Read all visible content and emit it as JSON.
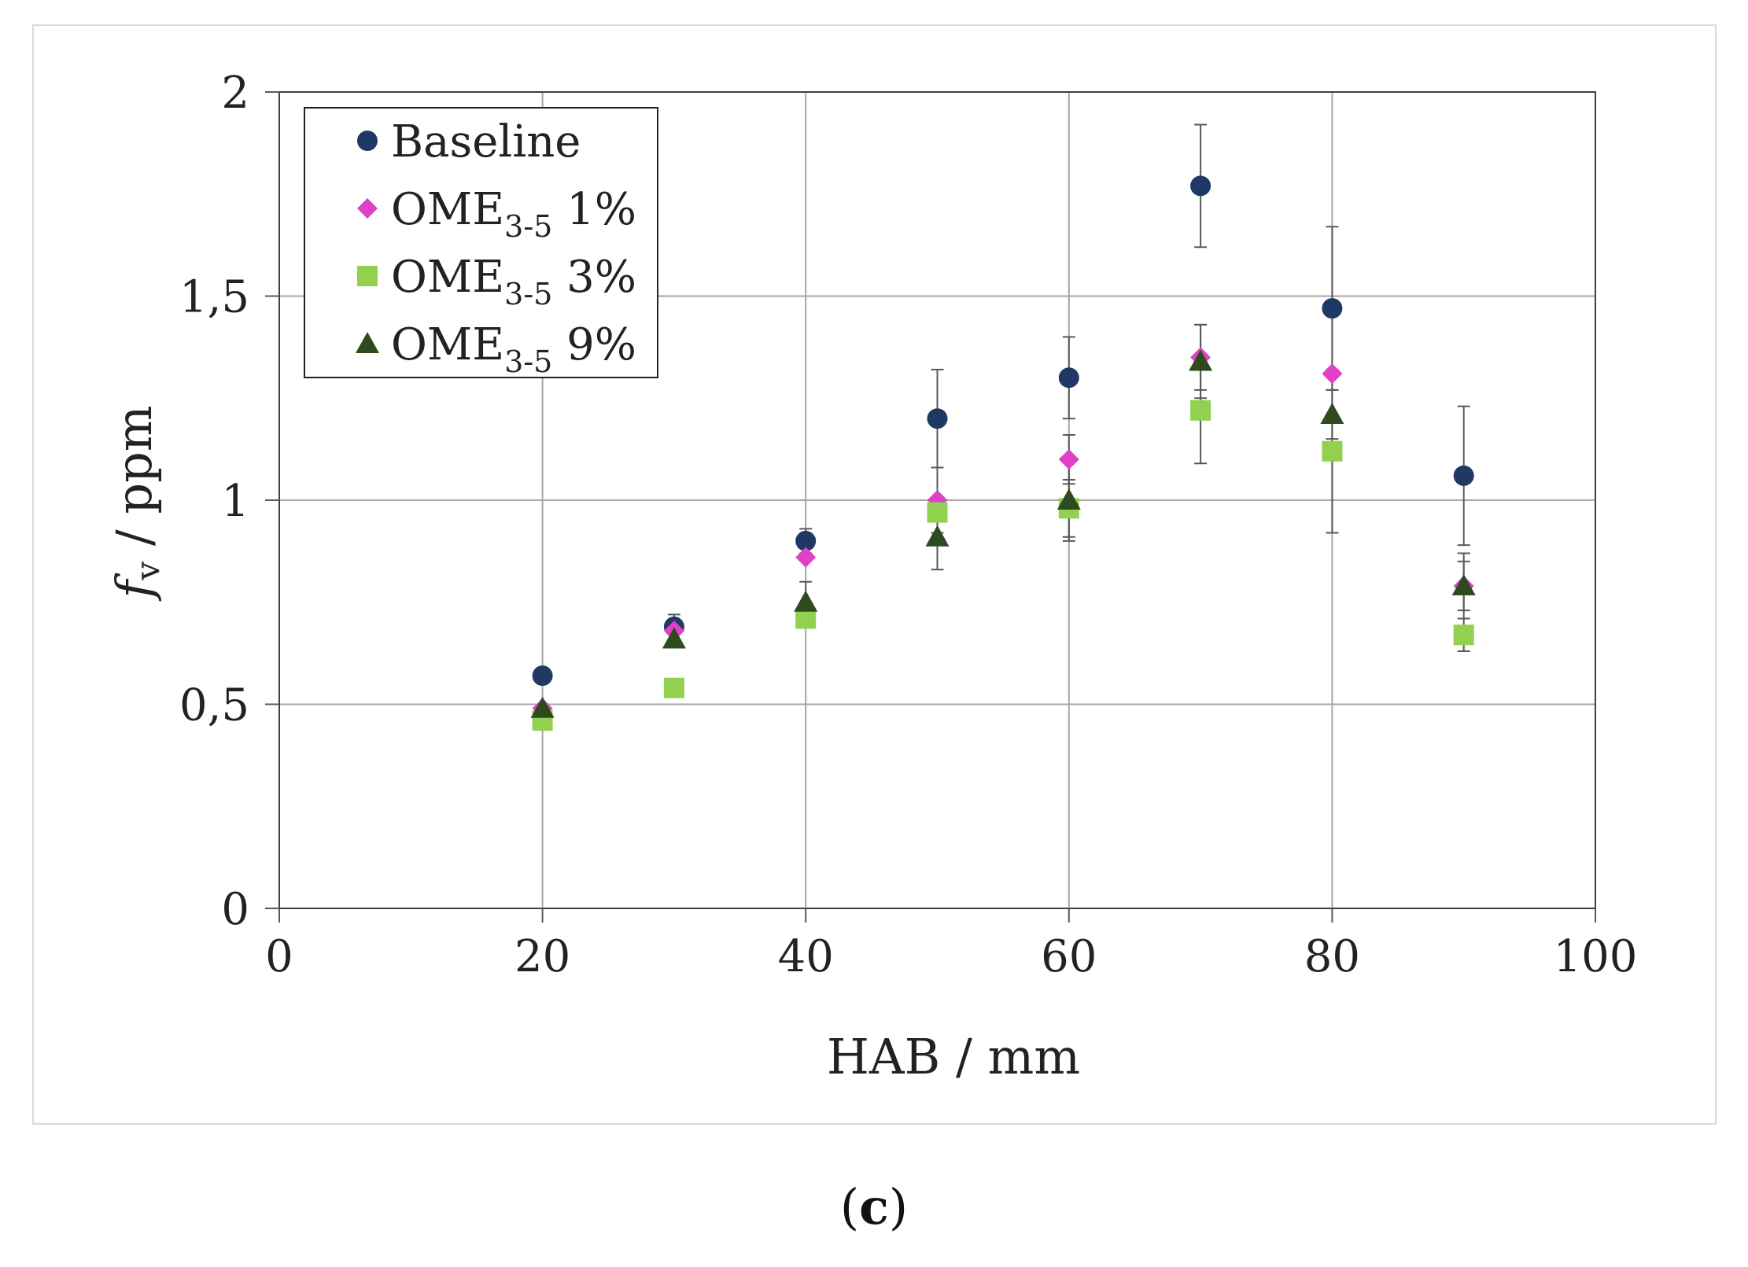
{
  "panel_label": {
    "open": "(",
    "letter": "c",
    "close": ")"
  },
  "colors": {
    "baseline": "#1f3864",
    "ome_1": "#e040c8",
    "ome_3": "#92d050",
    "ome_9": "#2e4a1e",
    "grid": "#a6a6a6",
    "axis": "#595959",
    "errorbar": "#595959"
  },
  "chart_data": {
    "type": "scatter",
    "xlabel": "HAB / mm",
    "ylabel": {
      "italic": "f",
      "subscript": "v",
      "rest": " / ppm"
    },
    "xlim": [
      0,
      100
    ],
    "ylim": [
      0,
      2
    ],
    "x_ticks": [
      0,
      20,
      40,
      60,
      80,
      100
    ],
    "x_tick_labels": [
      "0",
      "20",
      "40",
      "60",
      "80",
      "100"
    ],
    "y_ticks": [
      0,
      0.5,
      1,
      1.5,
      2
    ],
    "y_tick_labels": [
      "0",
      "0,5",
      "1",
      "1,5",
      "2"
    ],
    "grid": true,
    "legend_position": "top-left",
    "x": [
      20,
      30,
      40,
      50,
      60,
      70,
      80,
      90
    ],
    "series": [
      {
        "name": "Baseline",
        "legend": {
          "base": "Baseline",
          "sub": "",
          "suffix": ""
        },
        "marker": "circle",
        "color": "#1f3864",
        "values": [
          0.57,
          0.69,
          0.9,
          1.2,
          1.3,
          1.77,
          1.47,
          1.06
        ],
        "errors": [
          0.0,
          0.03,
          0.03,
          0.12,
          0.1,
          0.15,
          0.2,
          0.17
        ]
      },
      {
        "name": "OME3-5 1%",
        "legend": {
          "base": "OME",
          "sub": "3-5",
          "suffix": " 1%"
        },
        "marker": "diamond",
        "color": "#e040c8",
        "values": [
          0.49,
          0.68,
          0.86,
          1.0,
          1.1,
          1.35,
          1.31,
          0.79
        ],
        "errors": [
          0.0,
          0.0,
          0.0,
          0.08,
          0.06,
          0.08,
          0.0,
          0.08
        ]
      },
      {
        "name": "OME3-5 3%",
        "legend": {
          "base": "OME",
          "sub": "3-5",
          "suffix": " 3%"
        },
        "marker": "square",
        "color": "#92d050",
        "values": [
          0.46,
          0.54,
          0.71,
          0.97,
          0.98,
          1.22,
          1.12,
          0.67
        ],
        "errors": [
          0.0,
          0.0,
          0.0,
          0.0,
          0.07,
          0.13,
          0.2,
          0.04
        ]
      },
      {
        "name": "OME3-5 9%",
        "legend": {
          "base": "OME",
          "sub": "3-5",
          "suffix": " 9%"
        },
        "marker": "triangle",
        "color": "#2e4a1e",
        "values": [
          0.49,
          0.66,
          0.75,
          0.91,
          1.0,
          1.34,
          1.21,
          0.79
        ],
        "errors": [
          0.0,
          0.0,
          0.05,
          0.08,
          0.1,
          0.09,
          0.06,
          0.06
        ]
      }
    ]
  }
}
